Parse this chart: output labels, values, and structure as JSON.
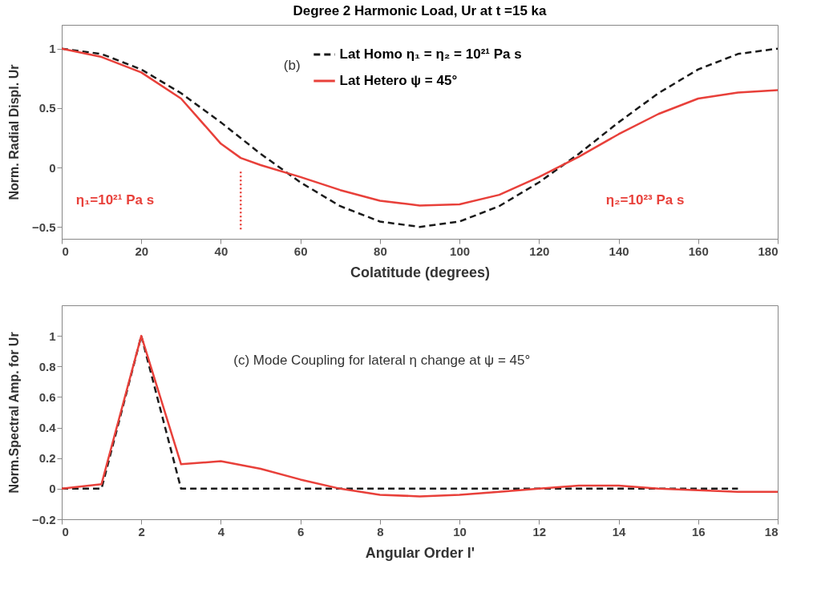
{
  "chart_data": [
    {
      "type": "line",
      "title": "Degree 2 Harmonic Load, Ur at t =15 ka",
      "xlabel": "Colatitude (degrees)",
      "ylabel": "Norm. Radial Displ. Ur",
      "xlim": [
        0,
        180
      ],
      "xticks": [
        0,
        20,
        40,
        60,
        80,
        100,
        120,
        140,
        160,
        180
      ],
      "ylim": [
        -0.6,
        1.2
      ],
      "yticks": [
        -0.5,
        0,
        0.5,
        1
      ],
      "legend": "top",
      "grid": false,
      "marker": "none",
      "series": [
        {
          "name": "Lat Homo   η₁ = η₂ = 10²¹ Pa s",
          "color": "#1a1a1a",
          "line_style": "dashed",
          "x": [
            0,
            10,
            20,
            30,
            40,
            50,
            60,
            70,
            80,
            90,
            100,
            110,
            120,
            130,
            140,
            150,
            160,
            170,
            180
          ],
          "values": [
            1,
            0.955,
            0.825,
            0.625,
            0.38,
            0.115,
            -0.125,
            -0.325,
            -0.455,
            -0.5,
            -0.455,
            -0.325,
            -0.125,
            0.115,
            0.38,
            0.625,
            0.825,
            0.955,
            1
          ]
        },
        {
          "name": "Lat Hetero   ψ = 45°",
          "color": "#e8403a",
          "line_style": "solid",
          "x": [
            0,
            10,
            20,
            30,
            40,
            45,
            50,
            60,
            70,
            80,
            90,
            100,
            110,
            120,
            130,
            140,
            150,
            160,
            170,
            180
          ],
          "values": [
            1,
            0.93,
            0.8,
            0.58,
            0.2,
            0.08,
            0.02,
            -0.08,
            -0.19,
            -0.28,
            -0.32,
            -0.31,
            -0.23,
            -0.08,
            0.09,
            0.28,
            0.45,
            0.58,
            0.63,
            0.65
          ]
        },
        {
          "color": "#e8403a",
          "line_style": "dotted",
          "x": [
            45,
            45
          ],
          "values": [
            -0.52,
            -0.03
          ]
        }
      ],
      "annotations": [
        "(b)",
        "η₁=10²¹ Pa s",
        "η₂=10²³ Pa s"
      ]
    },
    {
      "type": "line",
      "xlabel": "Angular Order   l'",
      "ylabel": "Norm.Spectral Amp. for Ur",
      "xlim": [
        0,
        18
      ],
      "xticks": [
        0,
        2,
        4,
        6,
        8,
        10,
        12,
        14,
        16,
        18
      ],
      "ylim": [
        -0.2,
        1.2
      ],
      "yticks": [
        -0.2,
        0,
        0.2,
        0.4,
        0.6,
        0.8,
        1
      ],
      "grid": false,
      "marker": "none",
      "series": [
        {
          "color": "#1a1a1a",
          "line_style": "dashed",
          "x": [
            0,
            1,
            2,
            3,
            4,
            5,
            6,
            7,
            8,
            9,
            10,
            11,
            12,
            13,
            14,
            15,
            16,
            17
          ],
          "values": [
            0,
            0,
            1,
            0,
            0,
            0,
            0,
            0,
            0,
            0,
            0,
            0,
            0,
            0,
            0,
            0,
            0,
            0
          ]
        },
        {
          "color": "#e8403a",
          "line_style": "solid",
          "x": [
            0,
            1,
            2,
            3,
            4,
            5,
            6,
            7,
            8,
            9,
            10,
            11,
            12,
            13,
            14,
            15,
            16,
            17,
            18
          ],
          "values": [
            0,
            0.03,
            1,
            0.16,
            0.18,
            0.13,
            0.06,
            0,
            -0.04,
            -0.05,
            -0.04,
            -0.02,
            0,
            0.02,
            0.02,
            0,
            -0.01,
            -0.02,
            -0.02
          ]
        }
      ],
      "annotations": [
        "(c)    Mode Coupling for lateral η change at ψ = 45°"
      ]
    }
  ]
}
